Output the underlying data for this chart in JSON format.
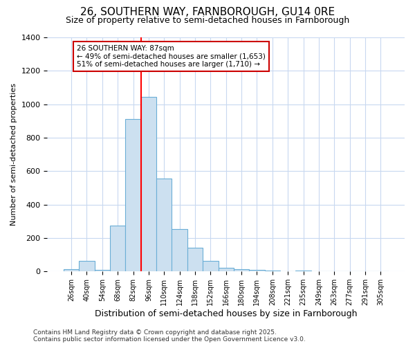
{
  "title1": "26, SOUTHERN WAY, FARNBOROUGH, GU14 0RE",
  "title2": "Size of property relative to semi-detached houses in Farnborough",
  "xlabel": "Distribution of semi-detached houses by size in Farnborough",
  "ylabel": "Number of semi-detached properties",
  "categories": [
    "26sqm",
    "40sqm",
    "54sqm",
    "68sqm",
    "82sqm",
    "96sqm",
    "110sqm",
    "124sqm",
    "138sqm",
    "152sqm",
    "166sqm",
    "180sqm",
    "194sqm",
    "208sqm",
    "221sqm",
    "235sqm",
    "249sqm",
    "263sqm",
    "277sqm",
    "291sqm",
    "305sqm"
  ],
  "values": [
    15,
    65,
    10,
    275,
    910,
    1045,
    555,
    255,
    140,
    65,
    20,
    15,
    10,
    5,
    0,
    5,
    0,
    0,
    0,
    0,
    0
  ],
  "bar_color": "#cce0f0",
  "bar_edge_color": "#6baed6",
  "annotation_text": "26 SOUTHERN WAY: 87sqm\n← 49% of semi-detached houses are smaller (1,653)\n51% of semi-detached houses are larger (1,710) →",
  "annotation_box_color": "#ffffff",
  "annotation_box_edge": "#cc0000",
  "ylim": [
    0,
    1400
  ],
  "yticks": [
    0,
    200,
    400,
    600,
    800,
    1000,
    1200,
    1400
  ],
  "footnote": "Contains HM Land Registry data © Crown copyright and database right 2025.\nContains public sector information licensed under the Open Government Licence v3.0.",
  "bg_color": "#ffffff",
  "grid_color": "#c8d8f0",
  "title_fontsize": 11,
  "subtitle_fontsize": 9,
  "red_line_index": 4.5
}
